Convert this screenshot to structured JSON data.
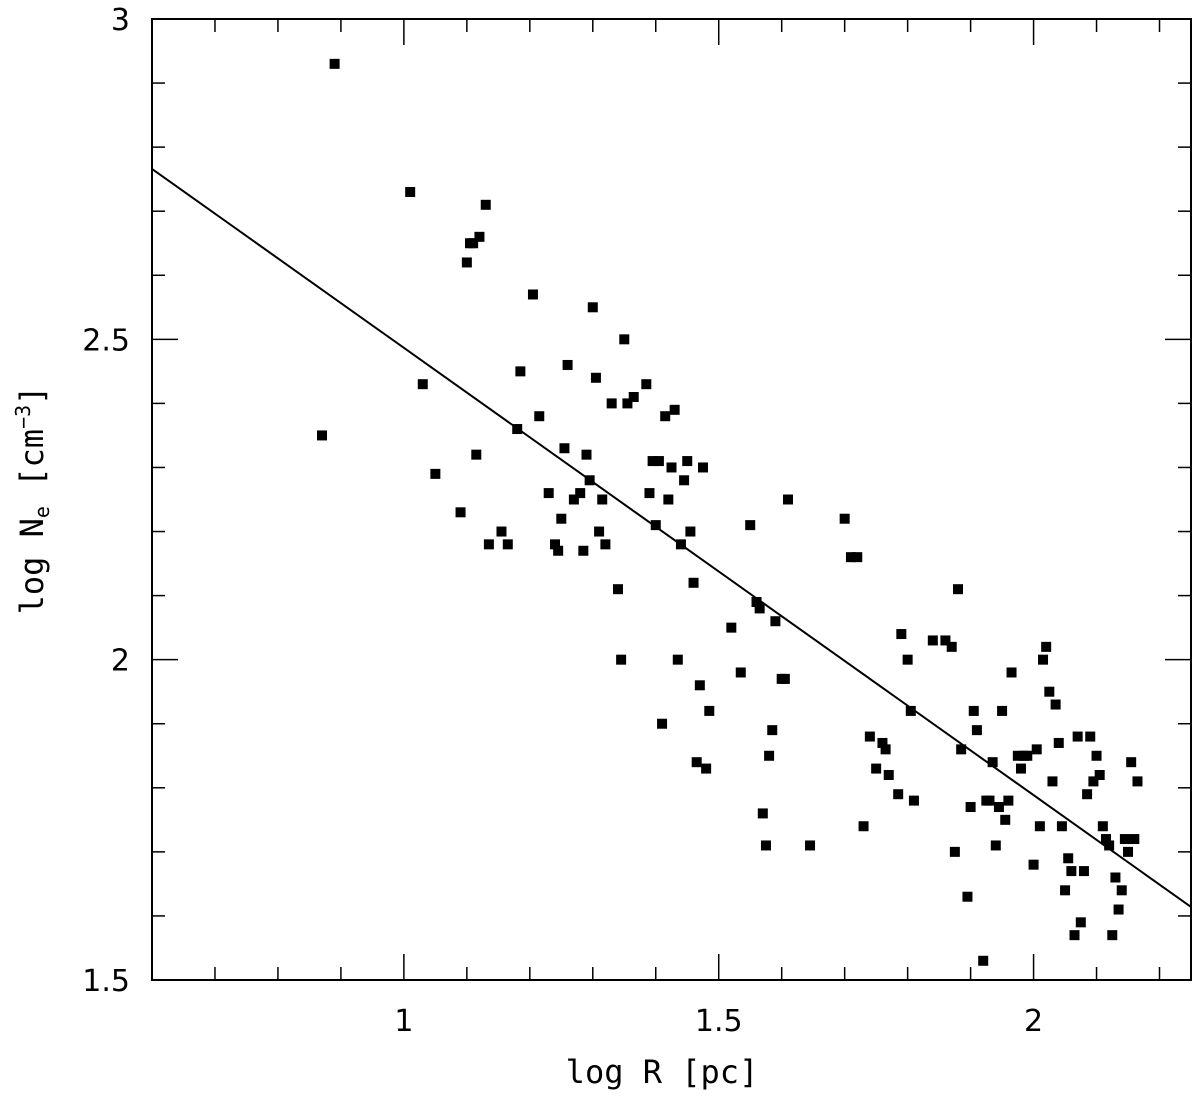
{
  "chart_data": {
    "type": "scatter",
    "title": "",
    "xlabel": "log R [pc]",
    "ylabel": {
      "prefix": "log N",
      "subscript": "e",
      "unit_open": " [cm",
      "superscript": "−3",
      "unit_close": "]"
    },
    "xlim": [
      0.6,
      2.25
    ],
    "ylim": [
      1.5,
      3.0
    ],
    "x_ticks": [
      {
        "value": 1,
        "label": "1"
      },
      {
        "value": 1.5,
        "label": "1.5"
      },
      {
        "value": 2,
        "label": "2"
      }
    ],
    "y_ticks": [
      {
        "value": 1.5,
        "label": "1.5"
      },
      {
        "value": 2,
        "label": "2"
      },
      {
        "value": 2.5,
        "label": "2.5"
      },
      {
        "value": 3,
        "label": "3"
      }
    ],
    "grid": false,
    "marker_color": "#000000",
    "fit_line": {
      "x": [
        0.6,
        2.25
      ],
      "y": [
        2.766,
        1.614
      ]
    },
    "points": [
      [
        0.87,
        2.35
      ],
      [
        0.89,
        2.93
      ],
      [
        1.01,
        2.73
      ],
      [
        1.03,
        2.43
      ],
      [
        1.05,
        2.29
      ],
      [
        1.09,
        2.23
      ],
      [
        1.1,
        2.62
      ],
      [
        1.105,
        2.65
      ],
      [
        1.11,
        2.65
      ],
      [
        1.115,
        2.32
      ],
      [
        1.12,
        2.66
      ],
      [
        1.13,
        2.71
      ],
      [
        1.135,
        2.18
      ],
      [
        1.155,
        2.2
      ],
      [
        1.165,
        2.18
      ],
      [
        1.18,
        2.36
      ],
      [
        1.185,
        2.45
      ],
      [
        1.205,
        2.57
      ],
      [
        1.215,
        2.38
      ],
      [
        1.23,
        2.26
      ],
      [
        1.24,
        2.18
      ],
      [
        1.245,
        2.17
      ],
      [
        1.25,
        2.22
      ],
      [
        1.255,
        2.33
      ],
      [
        1.26,
        2.46
      ],
      [
        1.27,
        2.25
      ],
      [
        1.28,
        2.26
      ],
      [
        1.285,
        2.17
      ],
      [
        1.29,
        2.32
      ],
      [
        1.295,
        2.28
      ],
      [
        1.3,
        2.55
      ],
      [
        1.305,
        2.44
      ],
      [
        1.31,
        2.2
      ],
      [
        1.315,
        2.25
      ],
      [
        1.32,
        2.18
      ],
      [
        1.33,
        2.4
      ],
      [
        1.34,
        2.11
      ],
      [
        1.345,
        2.0
      ],
      [
        1.35,
        2.5
      ],
      [
        1.355,
        2.4
      ],
      [
        1.365,
        2.41
      ],
      [
        1.385,
        2.43
      ],
      [
        1.39,
        2.26
      ],
      [
        1.395,
        2.31
      ],
      [
        1.4,
        2.21
      ],
      [
        1.405,
        2.31
      ],
      [
        1.41,
        1.9
      ],
      [
        1.415,
        2.38
      ],
      [
        1.42,
        2.25
      ],
      [
        1.425,
        2.3
      ],
      [
        1.43,
        2.39
      ],
      [
        1.435,
        2.0
      ],
      [
        1.44,
        2.18
      ],
      [
        1.445,
        2.28
      ],
      [
        1.45,
        2.31
      ],
      [
        1.455,
        2.2
      ],
      [
        1.46,
        2.12
      ],
      [
        1.465,
        1.84
      ],
      [
        1.47,
        1.96
      ],
      [
        1.475,
        2.3
      ],
      [
        1.48,
        1.83
      ],
      [
        1.485,
        1.92
      ],
      [
        1.52,
        2.05
      ],
      [
        1.535,
        1.98
      ],
      [
        1.55,
        2.21
      ],
      [
        1.56,
        2.09
      ],
      [
        1.565,
        2.08
      ],
      [
        1.57,
        1.76
      ],
      [
        1.575,
        1.71
      ],
      [
        1.58,
        1.85
      ],
      [
        1.585,
        1.89
      ],
      [
        1.59,
        2.06
      ],
      [
        1.6,
        1.97
      ],
      [
        1.605,
        1.97
      ],
      [
        1.61,
        2.25
      ],
      [
        1.645,
        1.71
      ],
      [
        1.7,
        2.22
      ],
      [
        1.71,
        2.16
      ],
      [
        1.72,
        2.16
      ],
      [
        1.73,
        1.74
      ],
      [
        1.74,
        1.88
      ],
      [
        1.75,
        1.83
      ],
      [
        1.76,
        1.87
      ],
      [
        1.765,
        1.86
      ],
      [
        1.77,
        1.82
      ],
      [
        1.785,
        1.79
      ],
      [
        1.79,
        2.04
      ],
      [
        1.8,
        2.0
      ],
      [
        1.805,
        1.92
      ],
      [
        1.81,
        1.78
      ],
      [
        1.84,
        2.03
      ],
      [
        1.86,
        2.03
      ],
      [
        1.87,
        2.02
      ],
      [
        1.875,
        1.7
      ],
      [
        1.88,
        2.11
      ],
      [
        1.885,
        1.86
      ],
      [
        1.895,
        1.63
      ],
      [
        1.9,
        1.77
      ],
      [
        1.905,
        1.92
      ],
      [
        1.91,
        1.89
      ],
      [
        1.92,
        1.53
      ],
      [
        1.925,
        1.78
      ],
      [
        1.93,
        1.78
      ],
      [
        1.935,
        1.84
      ],
      [
        1.94,
        1.71
      ],
      [
        1.945,
        1.77
      ],
      [
        1.95,
        1.92
      ],
      [
        1.955,
        1.75
      ],
      [
        1.96,
        1.78
      ],
      [
        1.965,
        1.98
      ],
      [
        1.975,
        1.85
      ],
      [
        1.98,
        1.83
      ],
      [
        1.985,
        1.85
      ],
      [
        1.99,
        1.85
      ],
      [
        2.0,
        1.68
      ],
      [
        2.005,
        1.86
      ],
      [
        2.01,
        1.74
      ],
      [
        2.015,
        2.0
      ],
      [
        2.02,
        2.02
      ],
      [
        2.025,
        1.95
      ],
      [
        2.03,
        1.81
      ],
      [
        2.035,
        1.93
      ],
      [
        2.04,
        1.87
      ],
      [
        2.045,
        1.74
      ],
      [
        2.05,
        1.64
      ],
      [
        2.055,
        1.69
      ],
      [
        2.06,
        1.67
      ],
      [
        2.065,
        1.57
      ],
      [
        2.07,
        1.88
      ],
      [
        2.075,
        1.59
      ],
      [
        2.08,
        1.67
      ],
      [
        2.085,
        1.79
      ],
      [
        2.09,
        1.88
      ],
      [
        2.095,
        1.81
      ],
      [
        2.1,
        1.85
      ],
      [
        2.105,
        1.82
      ],
      [
        2.11,
        1.74
      ],
      [
        2.115,
        1.72
      ],
      [
        2.12,
        1.71
      ],
      [
        2.125,
        1.57
      ],
      [
        2.13,
        1.66
      ],
      [
        2.135,
        1.61
      ],
      [
        2.14,
        1.64
      ],
      [
        2.145,
        1.72
      ],
      [
        2.15,
        1.7
      ],
      [
        2.155,
        1.84
      ],
      [
        2.16,
        1.72
      ],
      [
        2.165,
        1.81
      ]
    ]
  }
}
